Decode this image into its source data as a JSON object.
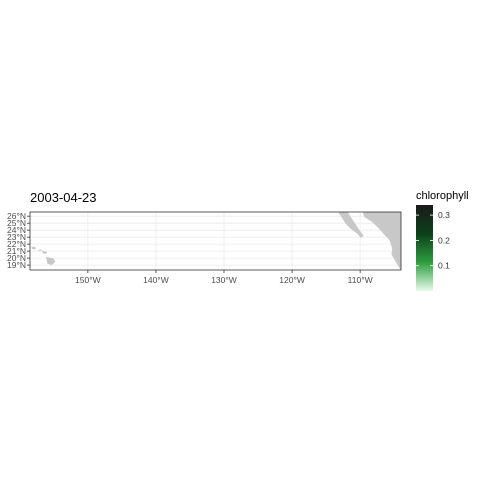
{
  "map": {
    "title": "2003-04-23",
    "y_tick_labels": [
      "26°N",
      "25°N",
      "24°N",
      "23°N",
      "22°N",
      "21°N",
      "20°N",
      "19°N"
    ],
    "y_tick_values": [
      26,
      25,
      24,
      23,
      22,
      21,
      20,
      19
    ],
    "x_tick_labels": [
      "150°W",
      "140°W",
      "130°W",
      "120°W",
      "110°W"
    ],
    "x_tick_values": [
      -150,
      -140,
      -130,
      -120,
      -110
    ],
    "lon_range": [
      -158.5,
      -104
    ],
    "lat_range": [
      18.3,
      26.6
    ],
    "land_color": "#c8c8c8",
    "grid_color": "#ebebeb",
    "panel_border_color": "#333333"
  },
  "legend": {
    "title": "chlorophyll",
    "tick_labels": [
      "0.3",
      "0.2",
      "0.1"
    ],
    "tick_values": [
      0.3,
      0.2,
      0.1
    ],
    "range": [
      0.0,
      0.34
    ],
    "gradient_colors": [
      "#e8fbe8",
      "#2e9e40",
      "#0b4019",
      "#1b1b1b"
    ]
  }
}
